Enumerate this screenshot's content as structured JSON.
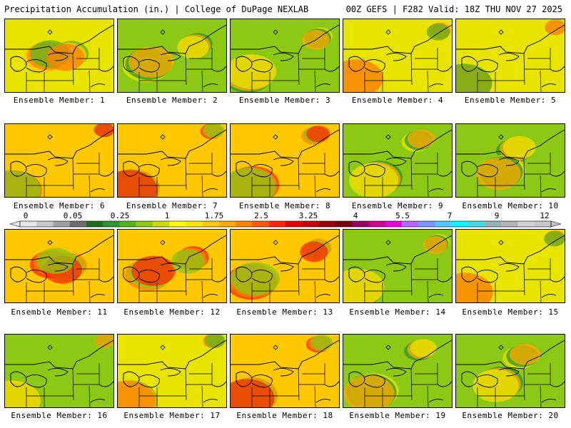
{
  "header": {
    "left": "Precipitation Accumulation (in.) | College of DuPage NEXLAB",
    "right": "00Z GEFS | F282 Valid: 18Z THU NOV 27 2025"
  },
  "panel_label_prefix": "Ensemble Member:",
  "members": [
    {
      "label": "Ensemble Member: 1",
      "theme": "yellow"
    },
    {
      "label": "Ensemble Member: 2",
      "theme": "green"
    },
    {
      "label": "Ensemble Member: 3",
      "theme": "green"
    },
    {
      "label": "Ensemble Member: 4",
      "theme": "yellow"
    },
    {
      "label": "Ensemble Member: 5",
      "theme": "yellow"
    },
    {
      "label": "Ensemble Member: 6",
      "theme": "orange"
    },
    {
      "label": "Ensemble Member: 7",
      "theme": "orange"
    },
    {
      "label": "Ensemble Member: 8",
      "theme": "orange"
    },
    {
      "label": "Ensemble Member: 9",
      "theme": "green"
    },
    {
      "label": "Ensemble Member: 10",
      "theme": "green"
    },
    {
      "label": "Ensemble Member: 11",
      "theme": "orange"
    },
    {
      "label": "Ensemble Member: 12",
      "theme": "orange"
    },
    {
      "label": "Ensemble Member: 13",
      "theme": "orange"
    },
    {
      "label": "Ensemble Member: 14",
      "theme": "green"
    },
    {
      "label": "Ensemble Member: 15",
      "theme": "yellow"
    },
    {
      "label": "Ensemble Member: 16",
      "theme": "green"
    },
    {
      "label": "Ensemble Member: 17",
      "theme": "yellow"
    },
    {
      "label": "Ensemble Member: 18",
      "theme": "orange"
    },
    {
      "label": "Ensemble Member: 19",
      "theme": "green"
    },
    {
      "label": "Ensemble Member: 20",
      "theme": "green"
    }
  ],
  "colorbar": {
    "tick_labels": [
      "0",
      "0.05",
      "0.25",
      "1",
      "1.75",
      "2.5",
      "3.25",
      "4",
      "5.5",
      "7",
      "9",
      "12"
    ],
    "colors": [
      "#e6e6e6",
      "#c8c8c8",
      "#a0a0a0",
      "#6e6e6e",
      "#1e6e1e",
      "#2d962d",
      "#50b41e",
      "#8cc814",
      "#c8dc00",
      "#ffff00",
      "#ffe600",
      "#ffc800",
      "#ffaa00",
      "#ff8200",
      "#ff5a00",
      "#ff2800",
      "#e60000",
      "#c80000",
      "#a00000",
      "#780000",
      "#960064",
      "#c8008c",
      "#e600dc",
      "#b464ff",
      "#7896ff",
      "#50c8ff",
      "#00ffff",
      "#46dcdc",
      "#96b4b4",
      "#b4b4b4",
      "#d2d2d2",
      "#c8c8c8"
    ]
  },
  "theme_colors": {
    "yellow": {
      "base": "#e8e400",
      "blob1": "#ffc800",
      "blob2": "#5fb41e",
      "blob3": "#ff8200"
    },
    "green": {
      "base": "#8cc814",
      "blob1": "#2d962d",
      "blob2": "#e8e400",
      "blob3": "#ffaa00"
    },
    "orange": {
      "base": "#ffc800",
      "blob1": "#ff8200",
      "blob2": "#ff2800",
      "blob3": "#8cc814"
    }
  }
}
